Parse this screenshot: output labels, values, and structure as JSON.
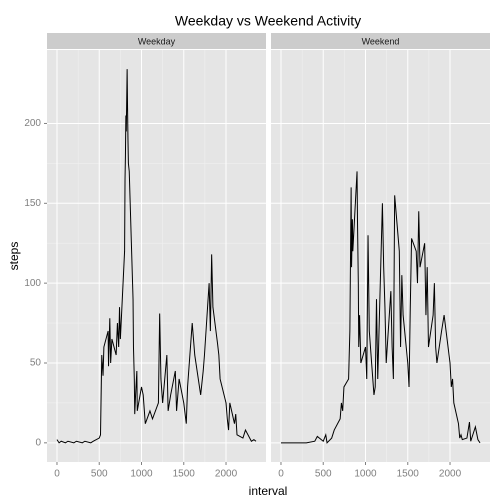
{
  "title": "Weekday vs Weekend Activity",
  "xlabel": "interval",
  "ylabel": "steps",
  "chart_data": [
    {
      "type": "line",
      "facet": "Weekday",
      "color": "#000000",
      "xlim": [
        -118,
        2473
      ],
      "xticks": [
        0,
        500,
        1000,
        1500,
        2000
      ],
      "ylim": [
        -12,
        246
      ],
      "yticks": [
        0,
        50,
        100,
        150,
        200
      ],
      "x": [
        0,
        25,
        50,
        100,
        130,
        200,
        230,
        300,
        330,
        400,
        430,
        500,
        515,
        530,
        545,
        555,
        605,
        610,
        625,
        635,
        650,
        700,
        715,
        730,
        740,
        750,
        800,
        805,
        810,
        815,
        820,
        830,
        835,
        840,
        845,
        855,
        900,
        905,
        915,
        920,
        930,
        945,
        950,
        1000,
        1020,
        1045,
        1100,
        1130,
        1200,
        1215,
        1230,
        1250,
        1300,
        1315,
        1345,
        1400,
        1415,
        1445,
        1500,
        1530,
        1545,
        1600,
        1630,
        1700,
        1730,
        1745,
        1800,
        1815,
        1830,
        1845,
        1900,
        1915,
        1930,
        2000,
        2015,
        2030,
        2045,
        2100,
        2115,
        2130,
        2200,
        2230,
        2300,
        2330,
        2355
      ],
      "values": [
        2,
        0,
        1,
        0,
        1,
        0,
        1,
        0,
        1,
        0,
        1,
        3,
        5,
        55,
        42,
        60,
        70,
        48,
        78,
        50,
        65,
        55,
        75,
        60,
        85,
        65,
        120,
        165,
        180,
        205,
        195,
        234,
        210,
        190,
        175,
        170,
        90,
        60,
        40,
        18,
        30,
        45,
        20,
        35,
        30,
        12,
        20,
        15,
        25,
        81,
        40,
        25,
        55,
        20,
        30,
        45,
        20,
        40,
        25,
        12,
        35,
        75,
        55,
        30,
        45,
        55,
        100,
        70,
        118,
        85,
        62,
        55,
        40,
        25,
        15,
        8,
        25,
        12,
        18,
        5,
        3,
        8,
        1,
        2,
        1
      ]
    },
    {
      "type": "line",
      "facet": "Weekend",
      "color": "#000000",
      "xlim": [
        -118,
        2473
      ],
      "xticks": [
        0,
        500,
        1000,
        1500,
        2000
      ],
      "ylim": [
        -12,
        246
      ],
      "yticks": [
        0,
        50,
        100,
        150,
        200
      ],
      "x": [
        0,
        100,
        200,
        300,
        400,
        430,
        500,
        530,
        545,
        600,
        630,
        700,
        715,
        730,
        745,
        800,
        815,
        830,
        835,
        845,
        850,
        900,
        905,
        915,
        920,
        930,
        945,
        1000,
        1015,
        1030,
        1045,
        1100,
        1115,
        1130,
        1145,
        1200,
        1215,
        1230,
        1245,
        1300,
        1315,
        1330,
        1345,
        1400,
        1415,
        1430,
        1445,
        1500,
        1515,
        1530,
        1545,
        1600,
        1615,
        1630,
        1645,
        1700,
        1715,
        1730,
        1745,
        1800,
        1815,
        1830,
        1845,
        1900,
        1930,
        2000,
        2015,
        2030,
        2045,
        2100,
        2115,
        2130,
        2145,
        2200,
        2230,
        2245,
        2300,
        2330,
        2355
      ],
      "values": [
        0,
        0,
        0,
        0,
        1,
        4,
        1,
        5,
        0,
        3,
        8,
        15,
        25,
        20,
        35,
        40,
        70,
        160,
        110,
        140,
        120,
        170,
        140,
        100,
        60,
        80,
        50,
        60,
        40,
        130,
        70,
        30,
        35,
        90,
        40,
        150,
        110,
        85,
        50,
        95,
        60,
        40,
        155,
        120,
        60,
        105,
        80,
        50,
        35,
        85,
        128,
        120,
        100,
        145,
        110,
        125,
        80,
        110,
        60,
        80,
        100,
        60,
        50,
        70,
        80,
        50,
        35,
        40,
        25,
        12,
        3,
        5,
        2,
        3,
        13,
        1,
        10,
        2,
        0
      ]
    }
  ]
}
